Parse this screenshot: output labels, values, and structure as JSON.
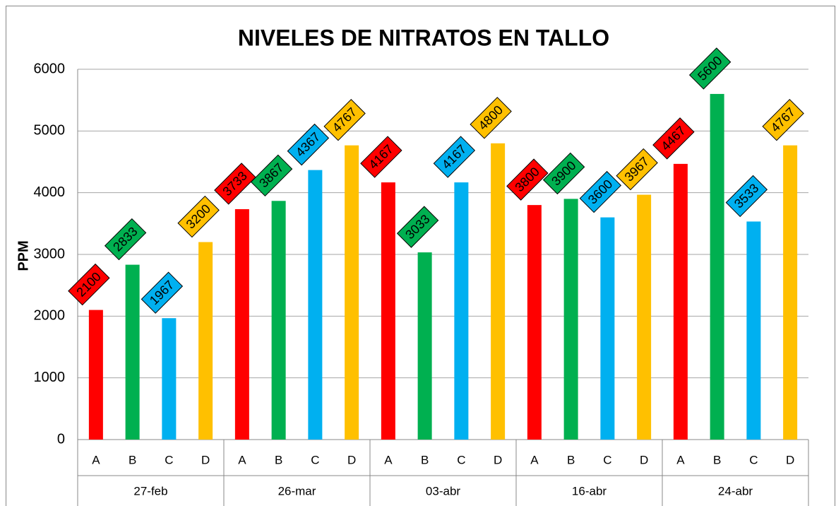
{
  "chart_data": {
    "type": "bar",
    "title": "NIVELES DE NITRATOS EN TALLO",
    "y_label": "PPM",
    "categories": [
      "27-feb",
      "26-mar",
      "03-abr",
      "16-abr",
      "24-abr"
    ],
    "series": [
      {
        "name": "A",
        "color": "#ff0000",
        "values": [
          2100,
          3733,
          4167,
          3800,
          4467
        ]
      },
      {
        "name": "B",
        "color": "#00b050",
        "values": [
          2833,
          3867,
          3033,
          3900,
          5600
        ]
      },
      {
        "name": "C",
        "color": "#00b0f0",
        "values": [
          1967,
          4367,
          4167,
          3600,
          3533
        ]
      },
      {
        "name": "D",
        "color": "#ffc000",
        "values": [
          3200,
          4767,
          4800,
          3967,
          4767
        ]
      }
    ],
    "ylim": [
      0,
      6000
    ],
    "yticks": [
      0,
      1000,
      2000,
      3000,
      4000,
      5000,
      6000
    ],
    "grid": true
  }
}
